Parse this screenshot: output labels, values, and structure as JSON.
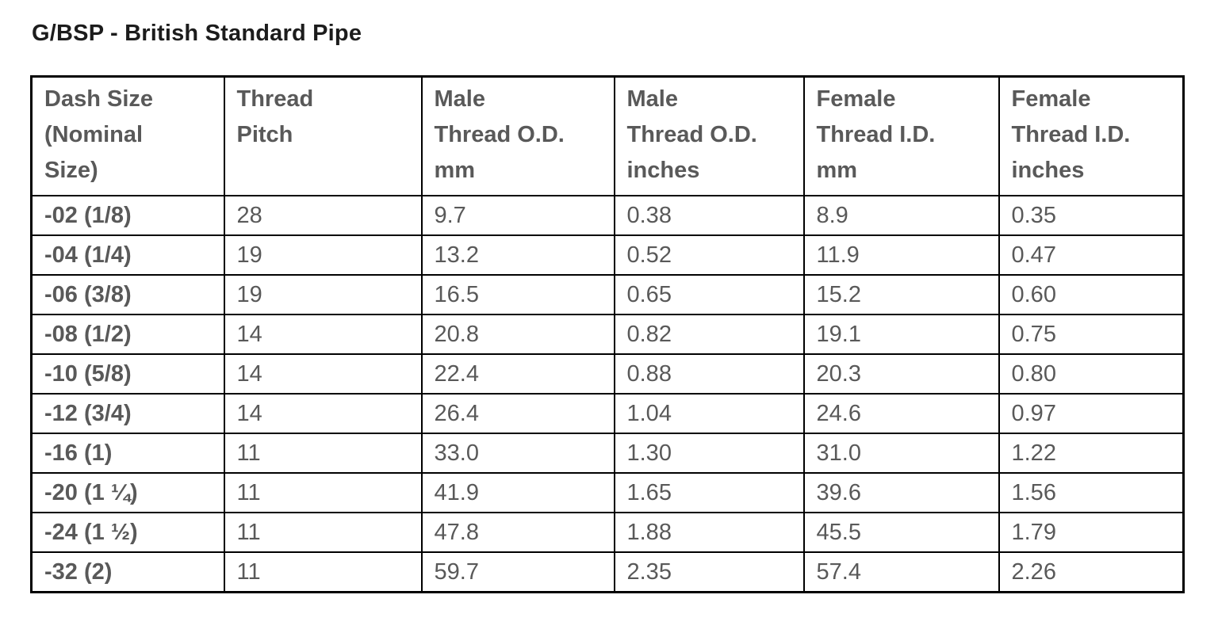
{
  "title": "G/BSP - British Standard Pipe",
  "chart_data": {
    "type": "table",
    "title": "G/BSP - British Standard Pipe",
    "columns": [
      {
        "key": "dash_size",
        "label": "Dash Size\n(Nominal\nSize)"
      },
      {
        "key": "thread_pitch",
        "label": "Thread\nPitch"
      },
      {
        "key": "male_thread_od_mm",
        "label": "Male\nThread O.D.\nmm"
      },
      {
        "key": "male_thread_od_inches",
        "label": "Male\nThread O.D.\ninches"
      },
      {
        "key": "female_thread_id_mm",
        "label": "Female\nThread I.D.\nmm"
      },
      {
        "key": "female_thread_id_inches",
        "label": "Female\nThread I.D.\ninches"
      }
    ],
    "rows": [
      [
        "-02 (1/8)",
        "28",
        "9.7",
        "0.38",
        "8.9",
        "0.35"
      ],
      [
        "-04 (1/4)",
        "19",
        "13.2",
        "0.52",
        "11.9",
        "0.47"
      ],
      [
        "-06 (3/8)",
        "19",
        "16.5",
        "0.65",
        "15.2",
        "0.60"
      ],
      [
        "-08 (1/2)",
        "14",
        "20.8",
        "0.82",
        "19.1",
        "0.75"
      ],
      [
        "-10 (5/8)",
        "14",
        "22.4",
        "0.88",
        "20.3",
        "0.80"
      ],
      [
        "-12 (3/4)",
        "14",
        "26.4",
        "1.04",
        "24.6",
        "0.97"
      ],
      [
        "-16 (1)",
        "11",
        "33.0",
        "1.30",
        "31.0",
        "1.22"
      ],
      [
        "-20 (1 ¼)",
        "11",
        "41.9",
        "1.65",
        "39.6",
        "1.56"
      ],
      [
        "-24 (1 ½)",
        "11",
        "47.8",
        "1.88",
        "45.5",
        "1.79"
      ],
      [
        "-32 (2)",
        "11",
        "59.7",
        "2.35",
        "57.4",
        "2.26"
      ]
    ]
  },
  "colors": {
    "title_text": "#1c1c1c",
    "table_text": "#595959",
    "border": "#000000",
    "background": "#ffffff"
  }
}
